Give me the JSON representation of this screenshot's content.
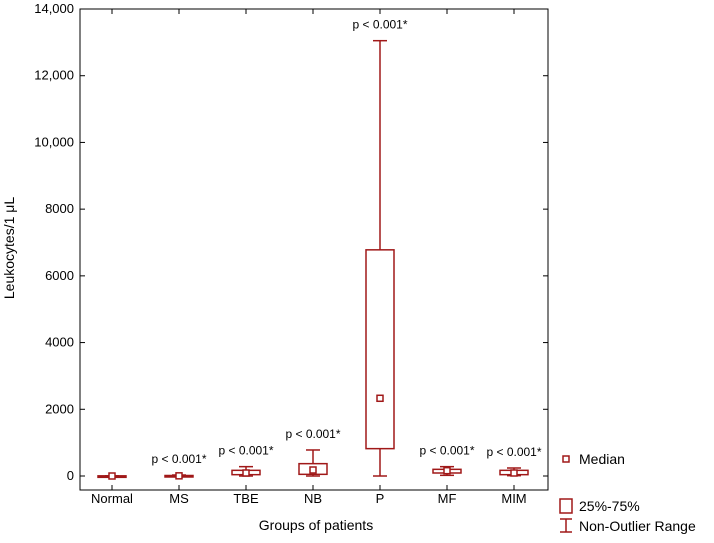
{
  "chart_data": {
    "type": "box",
    "title": "",
    "xlabel": "Groups of patients",
    "ylabel": "Leukocytes/1 μL",
    "ylim": [
      0,
      14000
    ],
    "yticks": [
      0,
      2000,
      4000,
      6000,
      8000,
      10000,
      12000,
      14000
    ],
    "ytick_labels": [
      "0",
      "2000",
      "4000",
      "6000",
      "8000",
      "10,000",
      "12,000",
      "14,000"
    ],
    "categories": [
      "Normal",
      "MS",
      "TBE",
      "NB",
      "P",
      "MF",
      "MIM"
    ],
    "boxes": [
      {
        "group": "Normal",
        "min": 0,
        "q1": 0,
        "median": 0,
        "q3": 5,
        "max": 5,
        "annotation": ""
      },
      {
        "group": "MS",
        "min": 0,
        "q1": 0,
        "median": 5,
        "q3": 15,
        "max": 30,
        "annotation": "p < 0.001*"
      },
      {
        "group": "TBE",
        "min": 0,
        "q1": 40,
        "median": 90,
        "q3": 170,
        "max": 280,
        "annotation": "p < 0.001*"
      },
      {
        "group": "NB",
        "min": 0,
        "q1": 50,
        "median": 180,
        "q3": 370,
        "max": 780,
        "annotation": "p < 0.001*"
      },
      {
        "group": "P",
        "min": 0,
        "q1": 820,
        "median": 2330,
        "q3": 6780,
        "max": 13050,
        "annotation": "p < 0.001*"
      },
      {
        "group": "MF",
        "min": 20,
        "q1": 90,
        "median": 160,
        "q3": 200,
        "max": 280,
        "annotation": "p < 0.001*"
      },
      {
        "group": "MIM",
        "min": 10,
        "q1": 40,
        "median": 90,
        "q3": 170,
        "max": 240,
        "annotation": "p < 0.001*"
      }
    ],
    "legend": {
      "placement": "bottom-right",
      "items": [
        "Median",
        "25%-75%",
        "Non-Outlier Range"
      ]
    },
    "grid": false,
    "color": "#a01818"
  }
}
